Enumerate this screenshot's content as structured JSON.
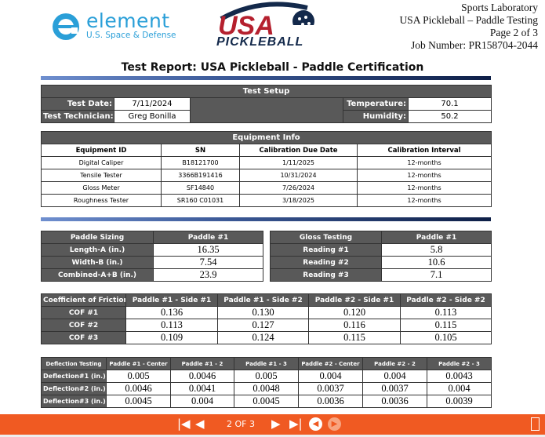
{
  "header": {
    "lines": [
      "Sports Laboratory",
      "USA Pickleball – Paddle Testing",
      "Page 2 of 3",
      "Job Number: PR158704-2044"
    ],
    "logo_element": {
      "name": "element",
      "sub": "U.S. Space & Defense"
    },
    "logo_usa": {
      "top": "USA",
      "bottom": "PICKLEBALL"
    }
  },
  "title": "Test Report: USA Pickleball - Paddle Certification",
  "setup": {
    "heading": "Test Setup",
    "date_label": "Test Date:",
    "date": "7/11/2024",
    "tech_label": "Test Technician:",
    "tech": "Greg Bonilla",
    "temp_label": "Temperature:",
    "temp": "70.1",
    "hum_label": "Humidity:",
    "hum": "50.2"
  },
  "equipment": {
    "heading": "Equipment Info",
    "columns": [
      "Equipment ID",
      "SN",
      "Calibration Due Date",
      "Calibration Interval"
    ],
    "rows": [
      [
        "Digital Caliper",
        "B18121700",
        "1/11/2025",
        "12-months"
      ],
      [
        "Tensile Tester",
        "3366B191416",
        "10/31/2024",
        "12-months"
      ],
      [
        "Gloss Meter",
        "SF14840",
        "7/26/2024",
        "12-months"
      ],
      [
        "Roughness Tester",
        "SR160 C01031",
        "3/18/2025",
        "12-months"
      ]
    ]
  },
  "sizing": {
    "columns": [
      "Paddle Sizing",
      "Paddle #1"
    ],
    "rows": [
      [
        "Length-A (in.)",
        "16.35"
      ],
      [
        "Width-B (in.)",
        "7.54"
      ],
      [
        "Combined-A+B (in.)",
        "23.9"
      ]
    ]
  },
  "gloss": {
    "columns": [
      "Gloss Testing",
      "Paddle #1"
    ],
    "rows": [
      [
        "Reading #1",
        "5.8"
      ],
      [
        "Reading #2",
        "10.6"
      ],
      [
        "Reading #3",
        "7.1"
      ]
    ]
  },
  "cof": {
    "columns": [
      "Coefficient of Friction",
      "Paddle #1 - Side #1",
      "Paddle #1 - Side #2",
      "Paddle #2 - Side #1",
      "Paddle #2 - Side #2"
    ],
    "rows": [
      [
        "COF #1",
        "0.136",
        "0.130",
        "0.120",
        "0.113"
      ],
      [
        "COF #2",
        "0.113",
        "0.127",
        "0.116",
        "0.115"
      ],
      [
        "COF #3",
        "0.109",
        "0.124",
        "0.115",
        "0.105"
      ]
    ]
  },
  "deflection": {
    "columns": [
      "Deflection Testing",
      "Paddle #1 - Center",
      "Paddle #1 - 2",
      "Paddle #1 - 3",
      "Paddle #2 - Center",
      "Paddle #2 - 2",
      "Paddle #2 - 3"
    ],
    "rows": [
      [
        "Deflection#1 (in.)",
        "0.005",
        "0.0046",
        "0.005",
        "0.004",
        "0.004",
        "0.0043"
      ],
      [
        "Deflection#2 (in.)",
        "0.0046",
        "0.0041",
        "0.0048",
        "0.0037",
        "0.0037",
        "0.004"
      ],
      [
        "Deflection#3 (in.)",
        "0.0045",
        "0.004",
        "0.0045",
        "0.0036",
        "0.0036",
        "0.0039"
      ]
    ]
  },
  "toolbar": {
    "page": "2 OF 3",
    "accent": "#f05a22"
  }
}
